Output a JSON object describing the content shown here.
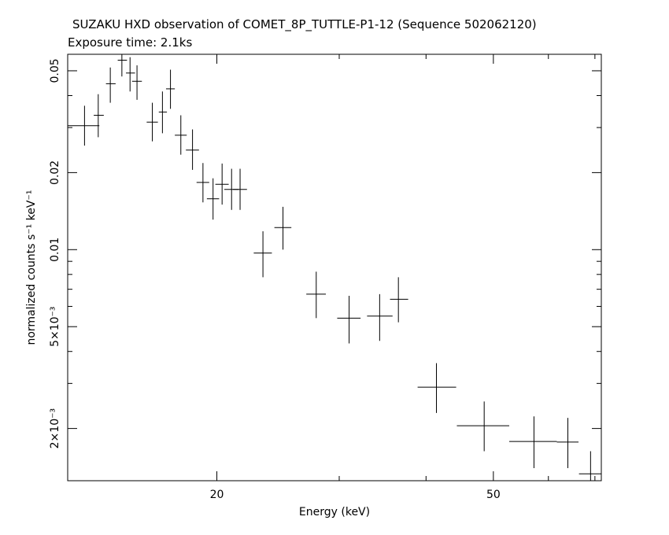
{
  "chart_data": {
    "type": "scatter",
    "title": "SUZAKU HXD observation of COMET_8P_TUTTLE-P1-12 (Sequence 502062120)",
    "subtitle": "Exposure time: 2.1ks",
    "xlabel": "Energy (keV)",
    "ylabel": "normalized counts s⁻¹ keV⁻¹",
    "x_scale": "log",
    "y_scale": "log",
    "xlim": [
      12.2,
      71.5
    ],
    "ylim": [
      0.00125,
      0.058
    ],
    "x_ticks": [
      {
        "value": 20,
        "label": "20"
      },
      {
        "value": 50,
        "label": "50"
      }
    ],
    "y_ticks": [
      {
        "value": 0.05,
        "label": "0.05"
      },
      {
        "value": 0.02,
        "label": "0.02"
      },
      {
        "value": 0.01,
        "label": "0.01"
      },
      {
        "value": 0.005,
        "label": "5×10⁻³"
      },
      {
        "value": 0.002,
        "label": "2×10⁻³"
      }
    ],
    "grid": false,
    "points": [
      {
        "x": 12.9,
        "xlo": 12.2,
        "xhi": 13.55,
        "y": 0.0305,
        "ylo": 0.0255,
        "yhi": 0.0365
      },
      {
        "x": 13.5,
        "xlo": 13.3,
        "xhi": 13.75,
        "y": 0.0335,
        "ylo": 0.0275,
        "yhi": 0.0405
      },
      {
        "x": 14.05,
        "xlo": 13.85,
        "xhi": 14.3,
        "y": 0.0445,
        "ylo": 0.0375,
        "yhi": 0.0515
      },
      {
        "x": 14.6,
        "xlo": 14.4,
        "xhi": 14.85,
        "y": 0.055,
        "ylo": 0.0475,
        "yhi": 0.0595
      },
      {
        "x": 15.0,
        "xlo": 14.8,
        "xhi": 15.25,
        "y": 0.049,
        "ylo": 0.0415,
        "yhi": 0.0565
      },
      {
        "x": 15.35,
        "xlo": 15.1,
        "xhi": 15.6,
        "y": 0.0455,
        "ylo": 0.0385,
        "yhi": 0.0525
      },
      {
        "x": 16.15,
        "xlo": 15.85,
        "xhi": 16.45,
        "y": 0.0315,
        "ylo": 0.0265,
        "yhi": 0.0375
      },
      {
        "x": 16.7,
        "xlo": 16.5,
        "xhi": 16.95,
        "y": 0.0345,
        "ylo": 0.0285,
        "yhi": 0.0415
      },
      {
        "x": 17.15,
        "xlo": 16.9,
        "xhi": 17.4,
        "y": 0.0425,
        "ylo": 0.0355,
        "yhi": 0.0505
      },
      {
        "x": 17.75,
        "xlo": 17.4,
        "xhi": 18.1,
        "y": 0.028,
        "ylo": 0.0235,
        "yhi": 0.0335
      },
      {
        "x": 18.45,
        "xlo": 18.05,
        "xhi": 18.85,
        "y": 0.0245,
        "ylo": 0.0205,
        "yhi": 0.0295
      },
      {
        "x": 19.1,
        "xlo": 18.7,
        "xhi": 19.5,
        "y": 0.0183,
        "ylo": 0.0153,
        "yhi": 0.0218
      },
      {
        "x": 19.75,
        "xlo": 19.35,
        "xhi": 20.15,
        "y": 0.0158,
        "ylo": 0.0131,
        "yhi": 0.019
      },
      {
        "x": 20.35,
        "xlo": 19.9,
        "xhi": 20.8,
        "y": 0.018,
        "ylo": 0.015,
        "yhi": 0.0217
      },
      {
        "x": 21.0,
        "xlo": 20.5,
        "xhi": 21.5,
        "y": 0.0172,
        "ylo": 0.0143,
        "yhi": 0.0207
      },
      {
        "x": 21.6,
        "xlo": 21.1,
        "xhi": 22.1,
        "y": 0.0172,
        "ylo": 0.0143,
        "yhi": 0.0207
      },
      {
        "x": 23.3,
        "xlo": 22.6,
        "xhi": 24.0,
        "y": 0.0097,
        "ylo": 0.0078,
        "yhi": 0.0118
      },
      {
        "x": 24.9,
        "xlo": 24.2,
        "xhi": 25.6,
        "y": 0.0122,
        "ylo": 0.01,
        "yhi": 0.0147
      },
      {
        "x": 27.8,
        "xlo": 26.9,
        "xhi": 28.7,
        "y": 0.0067,
        "ylo": 0.0054,
        "yhi": 0.0082
      },
      {
        "x": 31.0,
        "xlo": 29.8,
        "xhi": 32.2,
        "y": 0.0054,
        "ylo": 0.0043,
        "yhi": 0.0066
      },
      {
        "x": 34.3,
        "xlo": 32.9,
        "xhi": 35.8,
        "y": 0.0055,
        "ylo": 0.0044,
        "yhi": 0.0067
      },
      {
        "x": 36.5,
        "xlo": 35.5,
        "xhi": 37.7,
        "y": 0.0064,
        "ylo": 0.0052,
        "yhi": 0.0078
      },
      {
        "x": 41.4,
        "xlo": 38.9,
        "xhi": 44.2,
        "y": 0.0029,
        "ylo": 0.0023,
        "yhi": 0.0036
      },
      {
        "x": 48.5,
        "xlo": 44.3,
        "xhi": 52.7,
        "y": 0.00205,
        "ylo": 0.00163,
        "yhi": 0.00255
      },
      {
        "x": 57.2,
        "xlo": 52.7,
        "xhi": 61.7,
        "y": 0.00178,
        "ylo": 0.0014,
        "yhi": 0.00223
      },
      {
        "x": 64.0,
        "xlo": 61.7,
        "xhi": 66.3,
        "y": 0.00177,
        "ylo": 0.0014,
        "yhi": 0.0022
      },
      {
        "x": 69.0,
        "xlo": 66.4,
        "xhi": 71.5,
        "y": 0.00133,
        "ylo": 0.00108,
        "yhi": 0.00163
      }
    ]
  }
}
